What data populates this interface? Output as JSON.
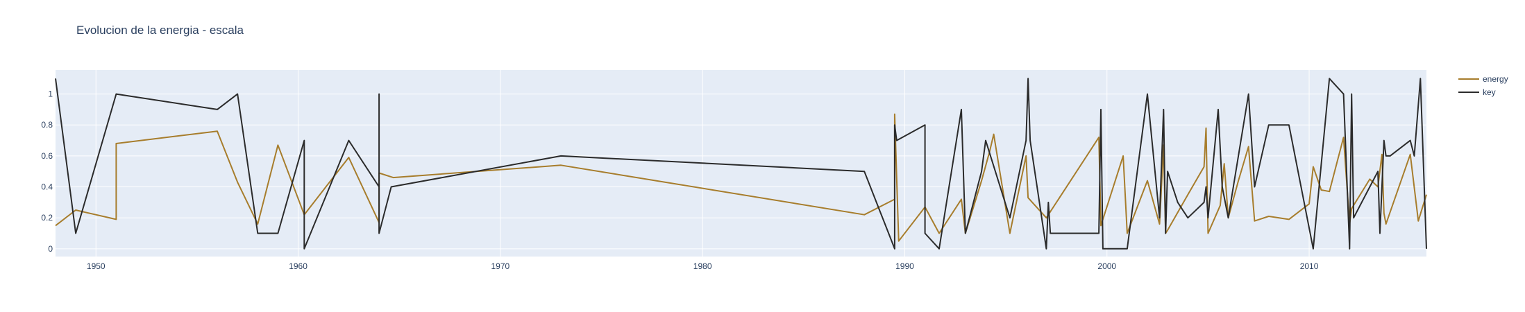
{
  "chart_data": {
    "type": "line",
    "title": "Evolucion de la energia - escala",
    "xlabel": "",
    "ylabel": "",
    "xlim": [
      1948,
      2015.8
    ],
    "ylim": [
      -0.05,
      1.155
    ],
    "x_ticks": [
      1950,
      1960,
      1970,
      1980,
      1990,
      2000,
      2010
    ],
    "y_ticks": [
      0,
      0.2,
      0.4,
      0.6,
      0.8,
      1
    ],
    "grid": true,
    "legend_position": "top-right",
    "series": [
      {
        "name": "energy",
        "color": "#a77d2c",
        "x": [
          1948.0,
          1949.0,
          1951.0,
          1951.0,
          1956.0,
          1957.0,
          1958.0,
          1959.0,
          1960.3,
          1962.5,
          1964.0,
          1964.0,
          1964.7,
          1973.0,
          1988.0,
          1989.5,
          1989.5,
          1989.7,
          1991.0,
          1991.7,
          1992.8,
          1993.0,
          1993.8,
          1994.2,
          1994.4,
          1995.2,
          1996.0,
          1996.1,
          1997.0,
          1999.6,
          1999.7,
          2000.8,
          2001.0,
          2002.0,
          2002.6,
          2002.8,
          2002.9,
          2003.0,
          2004.0,
          2004.8,
          2004.9,
          2005.0,
          2005.6,
          2005.8,
          2006.0,
          2006.5,
          2007.0,
          2007.3,
          2008.0,
          2009.0,
          2010.0,
          2010.2,
          2010.6,
          2011.0,
          2011.7,
          2012.0,
          2012.1,
          2013.0,
          2013.4,
          2013.6,
          2013.7,
          2013.8,
          2015.0,
          2015.4,
          2015.8
        ],
        "y": [
          0.15,
          0.25,
          0.19,
          0.68,
          0.76,
          0.43,
          0.16,
          0.67,
          0.22,
          0.59,
          0.17,
          0.49,
          0.46,
          0.54,
          0.22,
          0.32,
          0.87,
          0.05,
          0.27,
          0.1,
          0.32,
          0.1,
          0.44,
          0.63,
          0.74,
          0.1,
          0.6,
          0.33,
          0.2,
          0.72,
          0.15,
          0.6,
          0.1,
          0.44,
          0.16,
          0.67,
          0.1,
          0.12,
          0.35,
          0.53,
          0.78,
          0.1,
          0.28,
          0.55,
          0.2,
          0.44,
          0.66,
          0.18,
          0.21,
          0.19,
          0.29,
          0.53,
          0.38,
          0.37,
          0.72,
          0.16,
          0.26,
          0.45,
          0.4,
          0.61,
          0.23,
          0.16,
          0.61,
          0.18,
          0.35
        ]
      },
      {
        "name": "key",
        "color": "#2b2b2b",
        "x": [
          1948.0,
          1949.0,
          1951.0,
          1956.0,
          1957.0,
          1958.0,
          1959.0,
          1960.3,
          1960.3,
          1962.5,
          1964.0,
          1964.0,
          1964.0,
          1964.6,
          1973.0,
          1988.0,
          1989.5,
          1989.5,
          1989.6,
          1991.0,
          1991.0,
          1991.7,
          1992.8,
          1993.0,
          1993.8,
          1994.0,
          1995.2,
          1996.0,
          1996.1,
          1996.2,
          1997.0,
          1997.1,
          1997.2,
          1999.6,
          1999.7,
          1999.8,
          2000.0,
          2001.0,
          2002.0,
          2002.6,
          2002.8,
          2002.9,
          2003.0,
          2003.5,
          2004.0,
          2004.8,
          2004.9,
          2005.0,
          2005.5,
          2005.7,
          2006.0,
          2007.0,
          2007.3,
          2008.0,
          2009.0,
          2010.2,
          2011.0,
          2011.7,
          2012.0,
          2012.1,
          2012.2,
          2013.0,
          2013.4,
          2013.5,
          2013.7,
          2013.8,
          2014.0,
          2015.0,
          2015.2,
          2015.5,
          2015.8
        ],
        "y": [
          1.1,
          0.1,
          1.0,
          0.9,
          1.0,
          0.1,
          0.1,
          0.7,
          0.0,
          0.7,
          0.4,
          1.0,
          0.1,
          0.4,
          0.6,
          0.5,
          0.0,
          0.8,
          0.7,
          0.8,
          0.1,
          0.0,
          0.9,
          0.1,
          0.5,
          0.7,
          0.2,
          0.7,
          1.1,
          0.7,
          0.0,
          0.3,
          0.1,
          0.1,
          0.9,
          0.0,
          0.0,
          0.0,
          1.0,
          0.2,
          0.9,
          0.1,
          0.5,
          0.3,
          0.2,
          0.3,
          0.4,
          0.2,
          0.9,
          0.4,
          0.2,
          1.0,
          0.4,
          0.8,
          0.8,
          0.0,
          1.1,
          1.0,
          0.0,
          1.0,
          0.2,
          0.4,
          0.5,
          0.1,
          0.7,
          0.6,
          0.6,
          0.7,
          0.6,
          1.1,
          0.0
        ]
      }
    ]
  }
}
